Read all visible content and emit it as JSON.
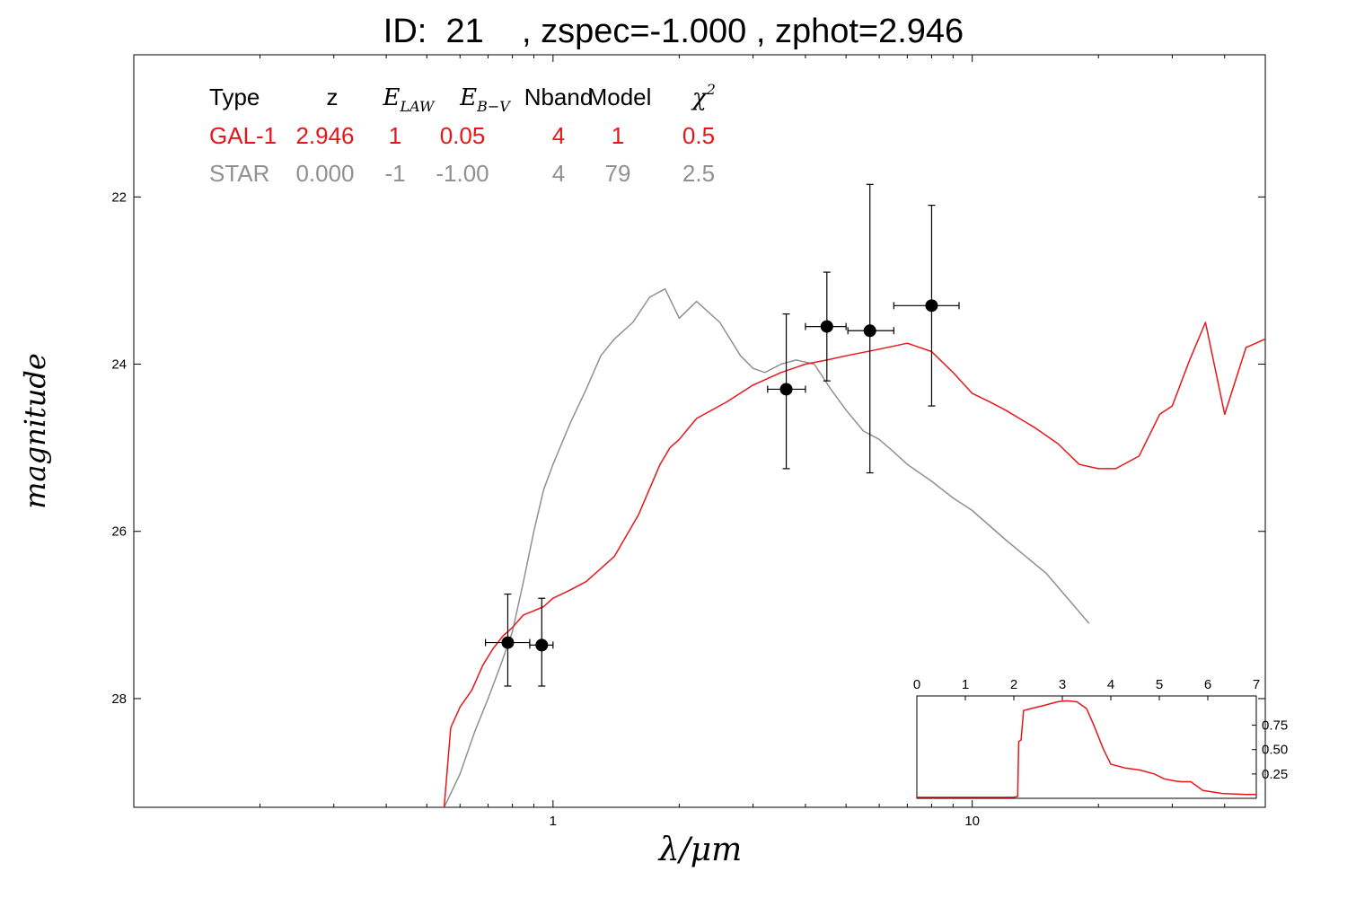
{
  "title": "ID:  21    , zspec=-1.000 , zphot=2.946",
  "colors": {
    "galaxy": "#e8161b",
    "star": "#909090",
    "points": "#000000"
  },
  "table": {
    "headers": [
      {
        "text": "Type",
        "style": "plain"
      },
      {
        "text": "z",
        "style": "plain"
      },
      {
        "text": "E",
        "sub": "LAW",
        "style": "math"
      },
      {
        "text": "E",
        "sub": "B−V",
        "style": "math"
      },
      {
        "text": "Nband",
        "style": "plain"
      },
      {
        "text": "Model",
        "style": "plain"
      },
      {
        "text": "χ",
        "sup": "2",
        "style": "math"
      }
    ],
    "rows": [
      {
        "color": "galaxy",
        "cells": [
          "GAL-1",
          "2.946",
          "1",
          "0.05",
          "4",
          "1",
          "0.5"
        ]
      },
      {
        "color": "star",
        "cells": [
          "STAR",
          "0.000",
          "-1",
          "-1.00",
          "4",
          "79",
          "2.5"
        ]
      }
    ]
  },
  "chart_data": [
    {
      "type": "line",
      "xlabel": "λ/μm",
      "ylabel": "magnitude",
      "xscale": "log",
      "xlim": [
        0.1,
        50
      ],
      "ylim": [
        29.3,
        20.3
      ],
      "xticks": [
        1,
        10
      ],
      "yticks": [
        22,
        24,
        26,
        28
      ],
      "points": [
        {
          "x": 0.78,
          "y": 27.33,
          "xerr": [
            0.69,
            0.88
          ],
          "yerr": [
            26.75,
            27.85
          ]
        },
        {
          "x": 0.94,
          "y": 27.36,
          "xerr": [
            0.88,
            1.0
          ],
          "yerr": [
            26.8,
            27.85
          ]
        },
        {
          "x": 3.6,
          "y": 24.3,
          "xerr": [
            3.25,
            4.0
          ],
          "yerr": [
            23.4,
            25.25
          ]
        },
        {
          "x": 4.5,
          "y": 23.55,
          "xerr": [
            4.0,
            5.0
          ],
          "yerr": [
            22.9,
            24.2
          ]
        },
        {
          "x": 5.7,
          "y": 23.6,
          "xerr": [
            5.05,
            6.5
          ],
          "yerr": [
            21.85,
            25.3
          ]
        },
        {
          "x": 8.0,
          "y": 23.3,
          "xerr": [
            6.5,
            9.3
          ],
          "yerr": [
            22.1,
            24.5
          ]
        }
      ],
      "series": [
        {
          "name": "GAL-1",
          "color": "galaxy",
          "x": [
            0.55,
            0.57,
            0.6,
            0.64,
            0.68,
            0.72,
            0.76,
            0.8,
            0.85,
            0.9,
            0.95,
            1.0,
            1.1,
            1.2,
            1.4,
            1.6,
            1.8,
            1.9,
            2.0,
            2.2,
            2.6,
            3.0,
            3.5,
            4.0,
            4.5,
            5.0,
            6.0,
            7.0,
            8.0,
            9.0,
            10.0,
            11.0,
            12.0,
            14.0,
            16.0,
            18.0,
            20.0,
            22.0,
            25.0,
            28.0,
            30.0,
            33.0,
            36.0,
            40.0,
            45.0,
            50.0
          ],
          "y": [
            29.3,
            28.35,
            28.1,
            27.9,
            27.6,
            27.4,
            27.25,
            27.15,
            27.0,
            26.95,
            26.9,
            26.8,
            26.7,
            26.6,
            26.3,
            25.8,
            25.2,
            25.0,
            24.9,
            24.65,
            24.45,
            24.25,
            24.1,
            24.0,
            23.95,
            23.9,
            23.82,
            23.75,
            23.85,
            24.1,
            24.35,
            24.45,
            24.55,
            24.75,
            24.95,
            25.2,
            25.25,
            25.25,
            25.1,
            24.6,
            24.5,
            23.95,
            23.5,
            24.6,
            23.8,
            23.7
          ]
        },
        {
          "name": "STAR",
          "color": "star",
          "x": [
            0.55,
            0.6,
            0.65,
            0.7,
            0.75,
            0.8,
            0.85,
            0.9,
            0.95,
            1.0,
            1.1,
            1.2,
            1.3,
            1.4,
            1.55,
            1.7,
            1.85,
            2.0,
            2.2,
            2.5,
            2.8,
            3.0,
            3.2,
            3.5,
            3.8,
            4.2,
            4.6,
            5.0,
            5.5,
            6.0,
            6.5,
            7.0,
            8.0,
            9.0,
            10.0,
            12.0,
            15.0,
            19.0
          ],
          "y": [
            29.3,
            28.9,
            28.4,
            28.0,
            27.6,
            27.2,
            26.6,
            26.0,
            25.5,
            25.2,
            24.7,
            24.3,
            23.9,
            23.7,
            23.5,
            23.2,
            23.1,
            23.45,
            23.25,
            23.5,
            23.9,
            24.05,
            24.1,
            24.0,
            23.95,
            24.0,
            24.3,
            24.55,
            24.8,
            24.9,
            25.05,
            25.2,
            25.4,
            25.6,
            25.75,
            26.1,
            26.5,
            27.1
          ]
        }
      ]
    },
    {
      "type": "line",
      "xlim": [
        0,
        7
      ],
      "ylim": [
        0,
        1.05
      ],
      "xticks": [
        0,
        1,
        2,
        3,
        4,
        5,
        6,
        7
      ],
      "yticks": [
        0.25,
        0.5,
        0.75
      ],
      "series": [
        {
          "color": "galaxy",
          "x": [
            0,
            1.0,
            2.0,
            2.08,
            2.1,
            2.15,
            2.2,
            2.35,
            2.6,
            2.9,
            3.1,
            3.3,
            3.5,
            3.65,
            3.85,
            4.0,
            4.3,
            4.6,
            4.9,
            5.1,
            5.3,
            5.45,
            5.65,
            5.9,
            6.3,
            6.8,
            7.0
          ],
          "y": [
            0.01,
            0.01,
            0.01,
            0.02,
            0.58,
            0.6,
            0.9,
            0.92,
            0.95,
            0.99,
            1.0,
            0.99,
            0.92,
            0.75,
            0.5,
            0.35,
            0.31,
            0.29,
            0.25,
            0.2,
            0.18,
            0.17,
            0.17,
            0.08,
            0.05,
            0.04,
            0.04
          ]
        }
      ]
    }
  ]
}
